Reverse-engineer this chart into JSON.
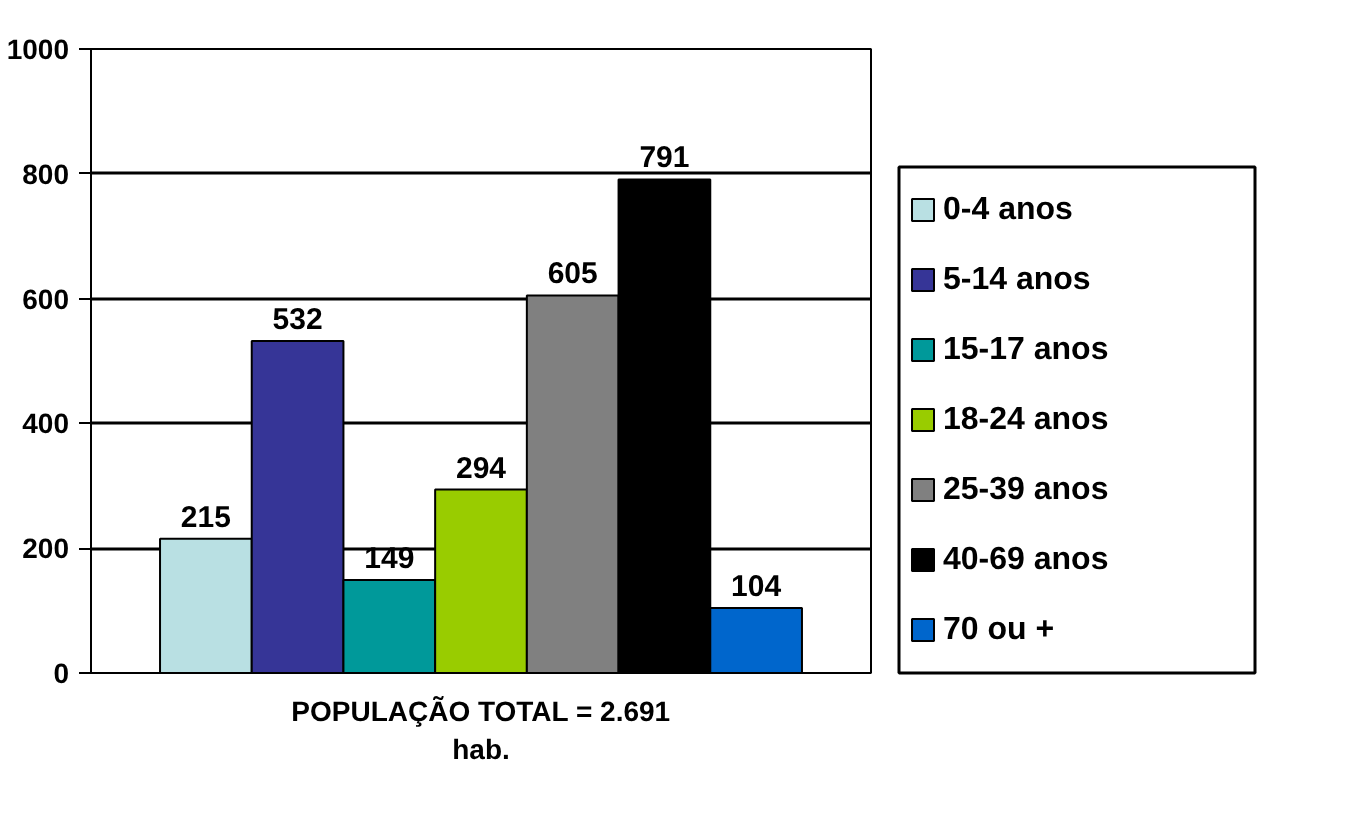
{
  "chart_data": {
    "type": "bar",
    "categories": [
      "POPULAÇÃO TOTAL = 2.691 hab."
    ],
    "series": [
      {
        "name": "0-4 anos",
        "color": "#b9e0e3",
        "values": [
          215
        ]
      },
      {
        "name": "5-14 anos",
        "color": "#363597",
        "values": [
          532
        ]
      },
      {
        "name": "15-17 anos",
        "color": "#00999a",
        "values": [
          149
        ]
      },
      {
        "name": "18-24 anos",
        "color": "#99cc00",
        "values": [
          294
        ]
      },
      {
        "name": "25-39 anos",
        "color": "#808080",
        "values": [
          605
        ]
      },
      {
        "name": "40-69 anos",
        "color": "#000000",
        "values": [
          791
        ]
      },
      {
        "name": "70 ou +",
        "color": "#0066cc",
        "values": [
          104
        ]
      }
    ],
    "ylim": [
      0,
      1000
    ],
    "yticks": [
      0,
      200,
      400,
      600,
      800,
      1000
    ],
    "grid": "y",
    "legend": "right",
    "data_labels": true
  }
}
